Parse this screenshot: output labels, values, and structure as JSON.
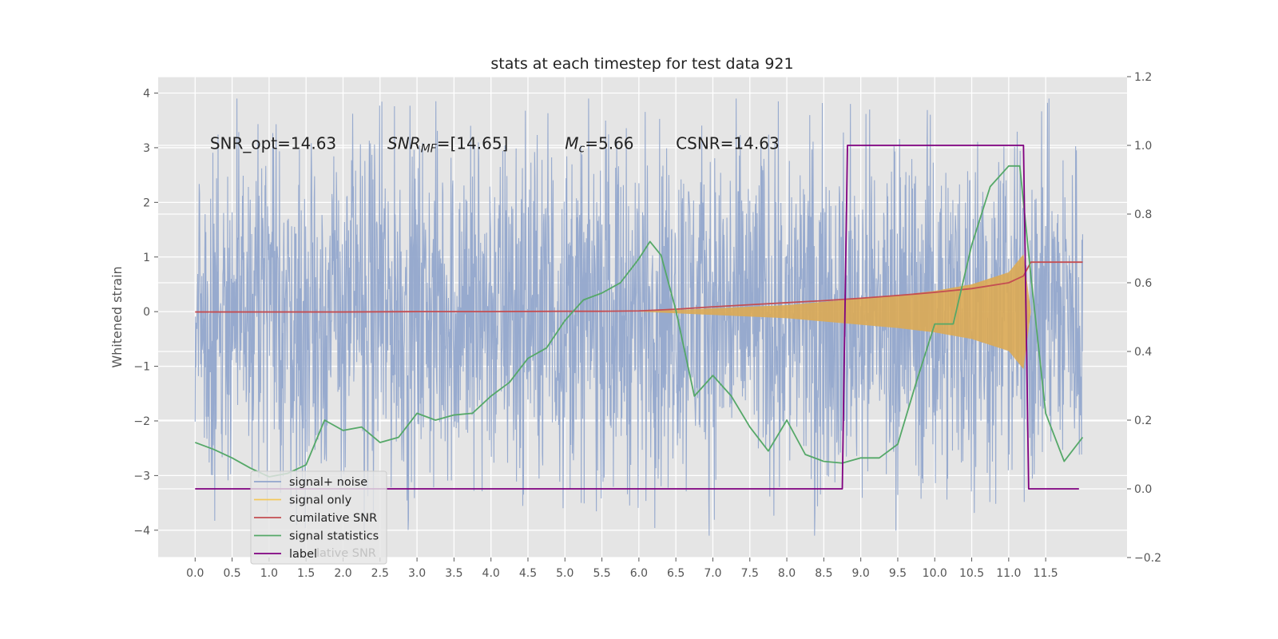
{
  "chart_data": {
    "type": "line",
    "title": "stats at each timestep for test data 921",
    "ylabel": "Whitened strain",
    "xlim": [
      -0.5,
      12.6
    ],
    "ylim_left": [
      -4.5,
      4.3
    ],
    "ylim_right": [
      -0.2,
      1.2
    ],
    "grid": true,
    "x_ticks": [
      0.0,
      0.5,
      1.0,
      1.5,
      2.0,
      2.5,
      3.0,
      3.5,
      4.0,
      4.5,
      5.0,
      5.5,
      6.0,
      6.5,
      7.0,
      7.5,
      8.0,
      8.5,
      9.0,
      9.5,
      10.0,
      10.5,
      11.0,
      11.5
    ],
    "x_tick_labels": [
      "0.0",
      "0.5",
      "1.0",
      "1.5",
      "2.0",
      "2.5",
      "3.0",
      "3.5",
      "4.0",
      "4.5",
      "5.0",
      "5.5",
      "6.0",
      "6.5",
      "7.0",
      "7.5",
      "8.0",
      "8.5",
      "9.0",
      "9.5",
      "10.0",
      "10.5",
      "11.0",
      "11.5"
    ],
    "y_left_ticks": [
      -4,
      -3,
      -2,
      -1,
      0,
      1,
      2,
      3,
      4
    ],
    "y_left_tick_labels": [
      "−4",
      "−3",
      "−2",
      "−1",
      "0",
      "1",
      "2",
      "3",
      "4"
    ],
    "y_right_ticks": [
      -0.2,
      0.0,
      0.2,
      0.4,
      0.6,
      0.8,
      1.0,
      1.2
    ],
    "y_right_tick_labels": [
      "−0.2",
      "0.0",
      "0.2",
      "0.4",
      "0.6",
      "0.8",
      "1.0",
      "1.2"
    ],
    "annotations": [
      {
        "text": "SNR_opt=14.63",
        "x": 0.2,
        "y": 3.08
      },
      {
        "text": "SNR_MF=[14.65]",
        "x": 2.6,
        "y": 3.08
      },
      {
        "text": "M_c=5.66",
        "x": 5.0,
        "y": 3.08
      },
      {
        "text": "CSNR=14.63",
        "x": 6.5,
        "y": 3.08
      }
    ],
    "legend": {
      "placement": "lower-left",
      "entries": [
        "signal+ noise",
        "signal only",
        "cumilative SNR",
        "signal statistics",
        "label"
      ],
      "occluded_text": "lative SNR"
    },
    "series": [
      {
        "name": "signal+ noise",
        "axis": "left",
        "color": "#92a6cc",
        "kind": "noise",
        "x_range": [
          0.0,
          12.0
        ],
        "envelope_upper": 3.0,
        "envelope_lower": -2.7,
        "max": 3.9,
        "min": -4.1
      },
      {
        "name": "signal only",
        "axis": "left",
        "color": "#dbaa54",
        "kind": "chirp",
        "x_range": [
          6.0,
          12.0
        ],
        "amplitude": {
          "x": [
            6.0,
            7.0,
            8.0,
            8.5,
            9.0,
            9.5,
            10.0,
            10.5,
            11.0,
            11.2,
            11.3,
            12.0
          ],
          "y": [
            0.0,
            0.06,
            0.12,
            0.18,
            0.24,
            0.3,
            0.38,
            0.5,
            0.72,
            1.05,
            0.0,
            0.0
          ]
        }
      },
      {
        "name": "cumilative SNR",
        "axis": "right",
        "color": "#c44e52",
        "x": [
          0.0,
          1.0,
          2.0,
          3.0,
          4.0,
          5.0,
          5.5,
          6.0,
          6.5,
          7.0,
          7.5,
          8.0,
          8.5,
          9.0,
          9.5,
          10.0,
          10.5,
          11.0,
          11.2,
          11.3,
          12.0
        ],
        "y": [
          0.515,
          0.515,
          0.515,
          0.516,
          0.516,
          0.517,
          0.517,
          0.518,
          0.523,
          0.53,
          0.536,
          0.542,
          0.548,
          0.555,
          0.563,
          0.572,
          0.583,
          0.6,
          0.62,
          0.66,
          0.66
        ]
      },
      {
        "name": "signal statistics",
        "axis": "right",
        "color": "#55a868",
        "x": [
          0.0,
          0.25,
          0.5,
          0.75,
          1.0,
          1.25,
          1.5,
          1.75,
          2.0,
          2.25,
          2.5,
          2.75,
          3.0,
          3.25,
          3.5,
          3.75,
          4.0,
          4.25,
          4.5,
          4.75,
          5.0,
          5.25,
          5.5,
          5.75,
          6.0,
          6.15,
          6.3,
          6.5,
          6.75,
          7.0,
          7.25,
          7.5,
          7.75,
          8.0,
          8.25,
          8.5,
          8.75,
          9.0,
          9.25,
          9.5,
          9.75,
          10.0,
          10.25,
          10.5,
          10.75,
          11.0,
          11.15,
          11.3,
          11.5,
          11.75,
          12.0
        ],
        "y": [
          0.135,
          0.115,
          0.09,
          0.06,
          0.035,
          0.045,
          0.07,
          0.2,
          0.17,
          0.18,
          0.135,
          0.15,
          0.22,
          0.2,
          0.215,
          0.22,
          0.27,
          0.31,
          0.38,
          0.41,
          0.49,
          0.55,
          0.57,
          0.6,
          0.67,
          0.72,
          0.68,
          0.52,
          0.27,
          0.33,
          0.27,
          0.18,
          0.11,
          0.2,
          0.1,
          0.08,
          0.075,
          0.09,
          0.09,
          0.13,
          0.31,
          0.48,
          0.48,
          0.71,
          0.88,
          0.94,
          0.94,
          0.62,
          0.22,
          0.08,
          0.15
        ]
      },
      {
        "name": "label",
        "axis": "right",
        "color": "#800080",
        "x": [
          0.0,
          8.75,
          8.82,
          11.2,
          11.27,
          11.95
        ],
        "y": [
          0.0,
          0.0,
          1.0,
          1.0,
          0.0,
          0.0
        ]
      }
    ]
  }
}
